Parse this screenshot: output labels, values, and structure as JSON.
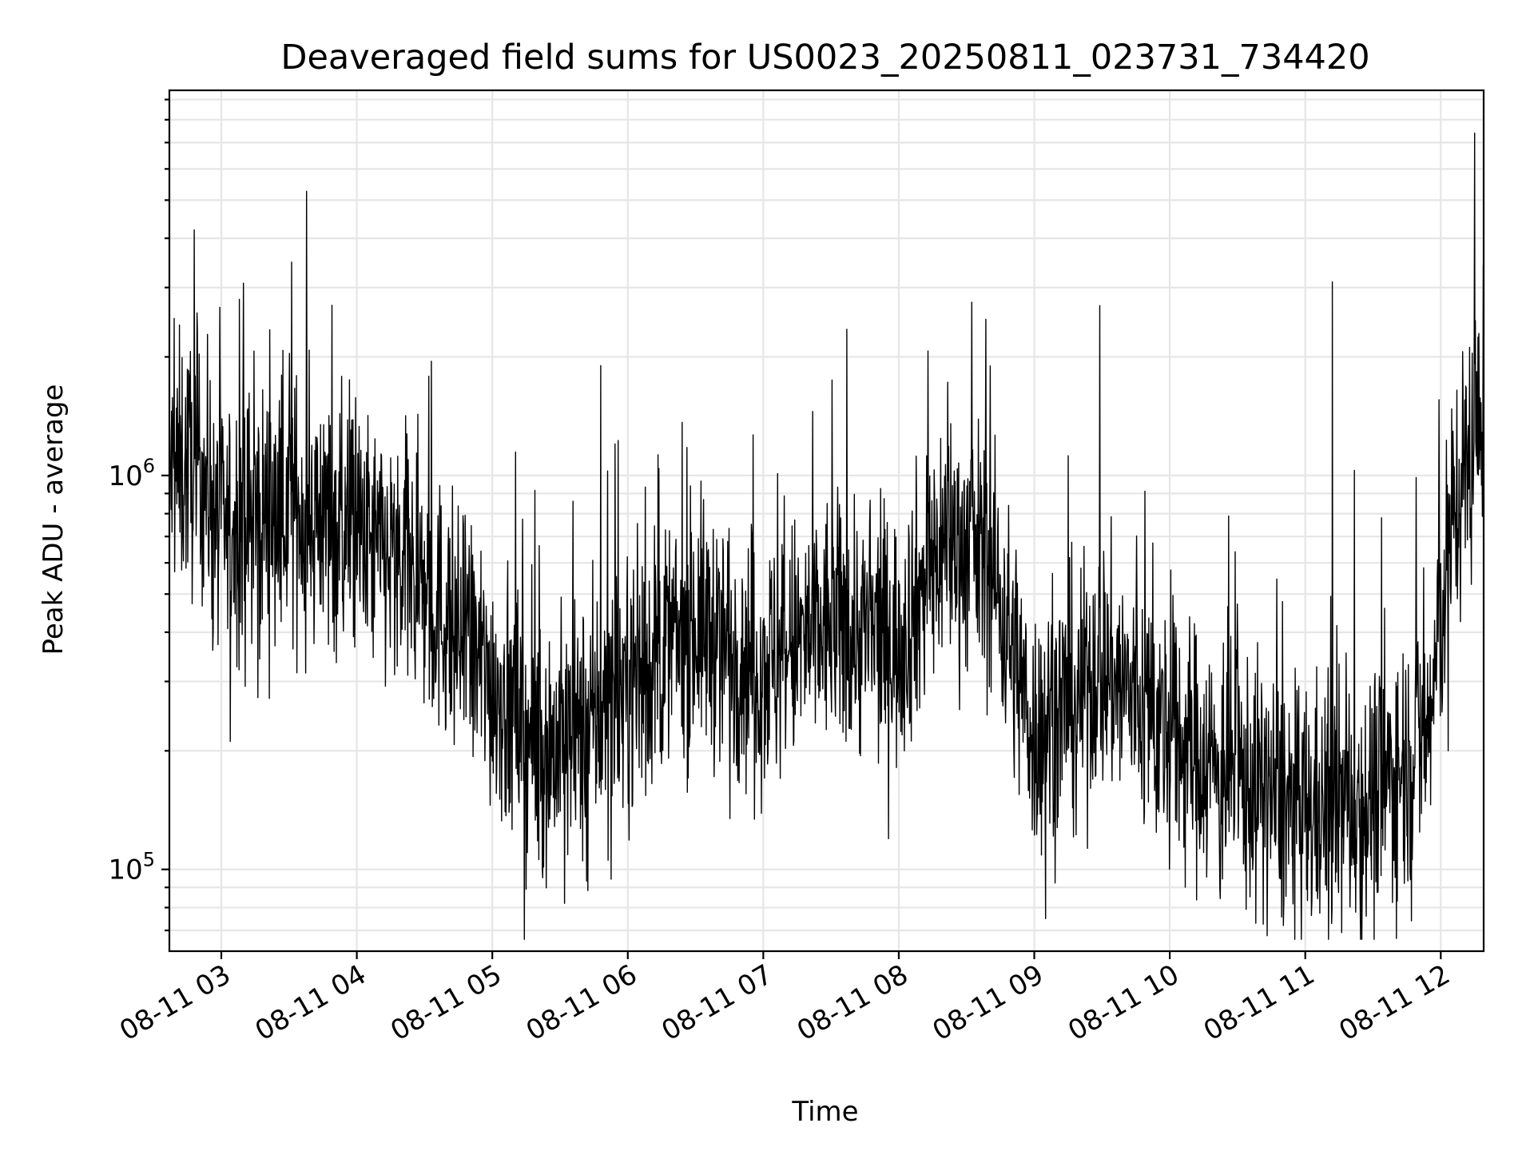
{
  "chart_data": {
    "type": "line",
    "title": "Deaveraged field sums for US0023_20250811_023731_734420",
    "xlabel": "Time",
    "ylabel": "Peak ADU - average",
    "yscale": "log",
    "grid": true,
    "legend": "none",
    "x_tick_labels": [
      "08-11 03",
      "08-11 04",
      "08-11 05",
      "08-11 06",
      "08-11 07",
      "08-11 08",
      "08-11 09",
      "08-11 10",
      "08-11 11",
      "08-11 12"
    ],
    "y_tick_labels": [
      {
        "value": 100000,
        "base": "10",
        "exp": "5"
      },
      {
        "value": 1000000,
        "base": "10",
        "exp": "6"
      }
    ],
    "xlim": [
      "2025-08-11 02:37",
      "2025-08-11 12:19"
    ],
    "ylim": [
      62000,
      9500000
    ],
    "series": [
      {
        "color": "#000000",
        "envelope": {
          "times": [
            "2025-08-11 02:37",
            "2025-08-11 02:50",
            "2025-08-11 03:00",
            "2025-08-11 03:30",
            "2025-08-11 04:00",
            "2025-08-11 04:30",
            "2025-08-11 05:00",
            "2025-08-11 05:20",
            "2025-08-11 05:40",
            "2025-08-11 06:00",
            "2025-08-11 06:30",
            "2025-08-11 07:00",
            "2025-08-11 07:30",
            "2025-08-11 08:00",
            "2025-08-11 08:20",
            "2025-08-11 08:40",
            "2025-08-11 09:00",
            "2025-08-11 09:30",
            "2025-08-11 10:00",
            "2025-08-11 10:30",
            "2025-08-11 11:00",
            "2025-08-11 11:30",
            "2025-08-11 11:55",
            "2025-08-11 12:05",
            "2025-08-11 12:19"
          ],
          "typical_values": [
            1000000,
            1100000,
            720000,
            850000,
            700000,
            520000,
            300000,
            200000,
            220000,
            300000,
            420000,
            330000,
            420000,
            380000,
            700000,
            620000,
            220000,
            330000,
            220000,
            170000,
            140000,
            150000,
            230000,
            800000,
            1500000
          ]
        },
        "spikes": [
          {
            "time": "2025-08-11 02:48",
            "value": 4200000
          },
          {
            "time": "2025-08-11 03:08",
            "value": 2800000
          },
          {
            "time": "2025-08-11 04:33",
            "value": 1950000
          },
          {
            "time": "2025-08-11 05:48",
            "value": 1900000
          },
          {
            "time": "2025-08-11 07:37",
            "value": 2350000
          },
          {
            "time": "2025-08-11 09:29",
            "value": 2700000
          },
          {
            "time": "2025-08-11 11:12",
            "value": 3100000
          },
          {
            "time": "2025-08-11 12:15",
            "value": 7400000
          }
        ],
        "dips": [
          {
            "time": "2025-08-11 05:32",
            "value": 82000
          },
          {
            "time": "2025-08-11 09:05",
            "value": 75000
          },
          {
            "time": "2025-08-11 11:47",
            "value": 74000
          }
        ]
      }
    ]
  }
}
